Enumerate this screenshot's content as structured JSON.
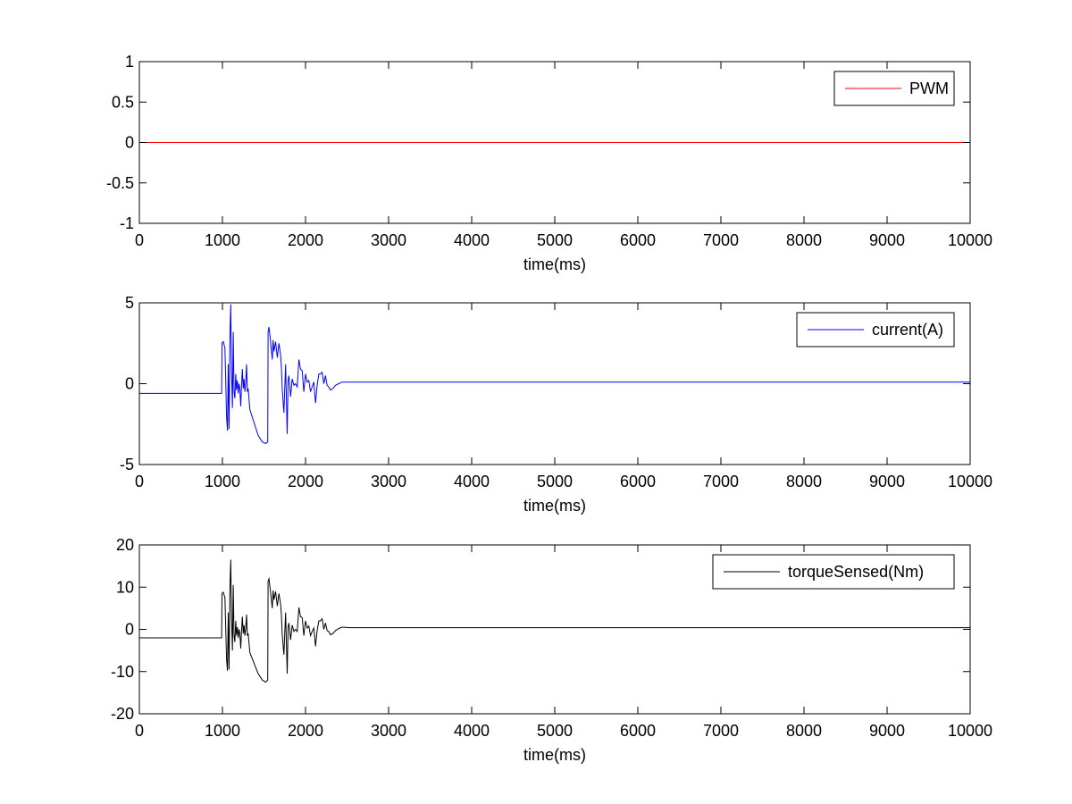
{
  "colors": {
    "background": "#ffffff",
    "axes": "#000000"
  },
  "chart_data": [
    {
      "type": "line",
      "xlabel": "time(ms)",
      "ylabel": "",
      "xlim": [
        0,
        10000
      ],
      "ylim": [
        -1,
        1
      ],
      "xticks": [
        0,
        1000,
        2000,
        3000,
        4000,
        5000,
        6000,
        7000,
        8000,
        9000,
        10000
      ],
      "xtick_labels": [
        "0",
        "1000",
        "2000",
        "3000",
        "4000",
        "5000",
        "6000",
        "7000",
        "8000",
        "9000",
        "10000"
      ],
      "yticks": [
        -1,
        -0.5,
        0,
        0.5,
        1
      ],
      "ytick_labels": [
        "-1",
        "-0.5",
        "0",
        "0.5",
        "1"
      ],
      "grid": false,
      "legend": "top-right",
      "series": [
        {
          "name": "PWM",
          "color": "#ff0000",
          "x": [
            0,
            10000
          ],
          "y": [
            0,
            0
          ]
        }
      ]
    },
    {
      "type": "line",
      "xlabel": "time(ms)",
      "ylabel": "",
      "xlim": [
        0,
        10000
      ],
      "ylim": [
        -5,
        5
      ],
      "xticks": [
        0,
        1000,
        2000,
        3000,
        4000,
        5000,
        6000,
        7000,
        8000,
        9000,
        10000
      ],
      "xtick_labels": [
        "0",
        "1000",
        "2000",
        "3000",
        "4000",
        "5000",
        "6000",
        "7000",
        "8000",
        "9000",
        "10000"
      ],
      "yticks": [
        -5,
        0,
        5
      ],
      "ytick_labels": [
        "-5",
        "0",
        "5"
      ],
      "grid": false,
      "legend": "top-right",
      "series": [
        {
          "name": "current(A)",
          "color": "#0000ff",
          "x": [
            0,
            990,
            995,
            1010,
            1030,
            1050,
            1060,
            1070,
            1080,
            1090,
            1100,
            1110,
            1120,
            1130,
            1140,
            1150,
            1160,
            1170,
            1180,
            1190,
            1200,
            1210,
            1220,
            1230,
            1240,
            1250,
            1260,
            1270,
            1280,
            1290,
            1300,
            1310,
            1330,
            1380,
            1430,
            1480,
            1520,
            1545,
            1550,
            1560,
            1580,
            1600,
            1610,
            1620,
            1640,
            1660,
            1680,
            1700,
            1710,
            1720,
            1740,
            1760,
            1780,
            1790,
            1800,
            1820,
            1840,
            1860,
            1880,
            1900,
            1920,
            1940,
            1960,
            1980,
            2000,
            2020,
            2040,
            2060,
            2080,
            2100,
            2120,
            2140,
            2160,
            2180,
            2200,
            2220,
            2240,
            2260,
            2280,
            2300,
            2330,
            2360,
            2400,
            2440,
            2480,
            2520,
            3000,
            10000
          ],
          "y": [
            -0.6,
            -0.6,
            2.5,
            2.6,
            2.2,
            -2.0,
            -2.9,
            1.2,
            -2.8,
            3.0,
            4.9,
            0.8,
            -1.5,
            3.2,
            -0.5,
            -0.9,
            0.6,
            -0.4,
            0.2,
            -0.6,
            0.0,
            -0.3,
            -1.4,
            -0.1,
            0.9,
            -0.3,
            0.3,
            -0.5,
            0.0,
            1.2,
            -0.5,
            -0.3,
            -1.6,
            -2.4,
            -3.2,
            -3.6,
            -3.7,
            -3.6,
            3.2,
            3.5,
            2.6,
            1.5,
            2.7,
            2.0,
            2.6,
            1.6,
            2.5,
            1.8,
            1.0,
            -0.4,
            -1.8,
            1.2,
            -3.1,
            0.2,
            0.5,
            -0.8,
            0.3,
            -0.1,
            0.0,
            -0.2,
            1.5,
            0.9,
            0.8,
            -0.5,
            0.6,
            0.1,
            0.2,
            -0.5,
            -0.2,
            0.1,
            -1.2,
            -0.1,
            0.6,
            0.6,
            0.7,
            0.0,
            0.5,
            -0.1,
            -0.2,
            -0.4,
            -0.3,
            -0.1,
            0.0,
            0.1,
            0.1,
            0.1,
            0.1,
            0.1
          ]
        }
      ]
    },
    {
      "type": "line",
      "xlabel": "time(ms)",
      "ylabel": "",
      "xlim": [
        0,
        10000
      ],
      "ylim": [
        -20,
        20
      ],
      "xticks": [
        0,
        1000,
        2000,
        3000,
        4000,
        5000,
        6000,
        7000,
        8000,
        9000,
        10000
      ],
      "xtick_labels": [
        "0",
        "1000",
        "2000",
        "3000",
        "4000",
        "5000",
        "6000",
        "7000",
        "8000",
        "9000",
        "10000"
      ],
      "yticks": [
        -20,
        -10,
        0,
        10,
        20
      ],
      "ytick_labels": [
        "-20",
        "-10",
        "0",
        "10",
        "20"
      ],
      "grid": false,
      "legend": "top-right",
      "series": [
        {
          "name": "torqueSensed(Nm)",
          "color": "#000000",
          "x": [
            0,
            990,
            995,
            1010,
            1030,
            1050,
            1060,
            1070,
            1080,
            1090,
            1100,
            1110,
            1120,
            1130,
            1140,
            1150,
            1160,
            1170,
            1180,
            1190,
            1200,
            1210,
            1220,
            1230,
            1240,
            1250,
            1260,
            1270,
            1280,
            1290,
            1300,
            1310,
            1330,
            1380,
            1430,
            1480,
            1520,
            1545,
            1550,
            1560,
            1580,
            1600,
            1610,
            1620,
            1640,
            1660,
            1680,
            1700,
            1710,
            1720,
            1740,
            1760,
            1780,
            1790,
            1800,
            1820,
            1840,
            1860,
            1880,
            1900,
            1920,
            1940,
            1960,
            1980,
            2000,
            2020,
            2040,
            2060,
            2080,
            2100,
            2120,
            2140,
            2160,
            2180,
            2200,
            2220,
            2240,
            2260,
            2280,
            2300,
            2330,
            2360,
            2400,
            2440,
            2480,
            2520,
            3000,
            10000
          ],
          "y": [
            -2.0,
            -2.0,
            8.5,
            8.8,
            7.5,
            -7.0,
            -9.8,
            4.0,
            -9.5,
            10.0,
            16.5,
            2.5,
            -5.0,
            10.5,
            -1.5,
            -3.0,
            2.0,
            -1.5,
            0.5,
            -2.0,
            0.0,
            -1.0,
            -4.5,
            -0.3,
            3.0,
            -1.0,
            1.0,
            -1.5,
            0.0,
            3.5,
            -1.5,
            -1.0,
            -5.5,
            -8.0,
            -10.5,
            -12.0,
            -12.5,
            -12.0,
            11.5,
            12.0,
            8.8,
            5.0,
            9.2,
            7.0,
            9.0,
            5.5,
            8.5,
            6.0,
            3.5,
            -1.5,
            -6.0,
            4.0,
            -10.5,
            0.5,
            1.5,
            -2.5,
            1.0,
            -0.5,
            0.0,
            -0.5,
            5.2,
            3.0,
            2.8,
            -1.5,
            2.0,
            0.3,
            0.8,
            -1.5,
            -0.5,
            0.3,
            -4.0,
            -0.3,
            2.0,
            2.0,
            2.5,
            0.0,
            1.5,
            -0.3,
            -0.5,
            -1.3,
            -1.0,
            -0.3,
            0.2,
            0.5,
            0.5,
            0.4,
            0.4,
            0.4
          ]
        }
      ]
    }
  ]
}
